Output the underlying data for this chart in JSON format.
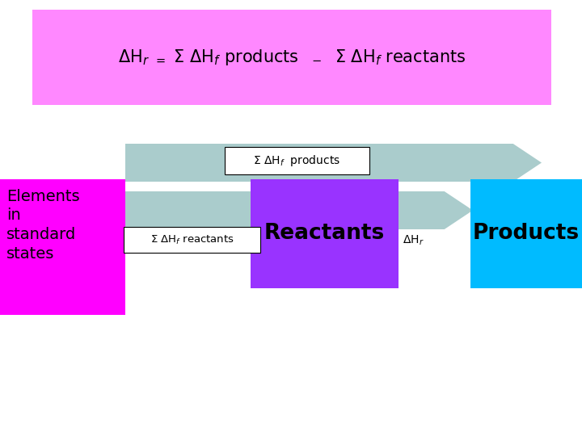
{
  "background_color": "#ffffff",
  "title_box_color": "#ff88ff",
  "elements_box_color": "#ff00ff",
  "elements_text": "Elements\nin\nstandard\nstates",
  "reactants_box_color": "#9933ff",
  "reactants_text": "Reactants",
  "products_box_color": "#00bbff",
  "products_text": "Products",
  "arrow_color": "#aacccc",
  "arrow_color2": "#99bbcc"
}
